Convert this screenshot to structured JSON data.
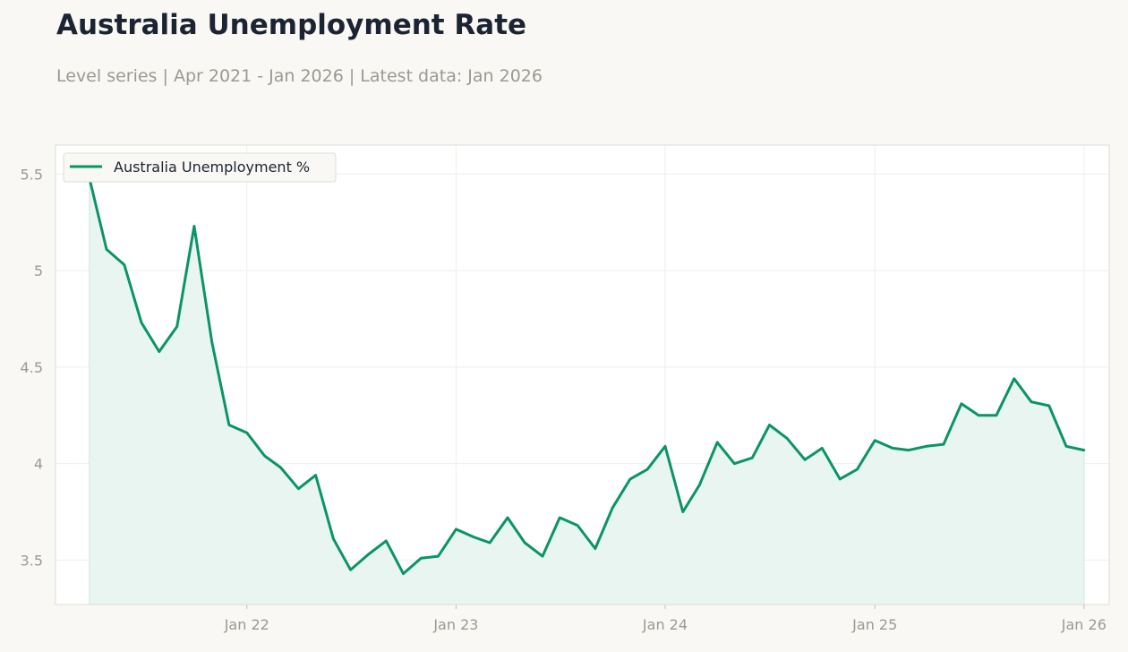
{
  "header": {
    "title": "Australia Unemployment Rate",
    "subtitle": "Level series | Apr 2021 - Jan 2026 | Latest data: Jan 2026"
  },
  "colors": {
    "line": "#0a9468",
    "fill": "#e9f5f0",
    "grid": "#eeeeec",
    "frame": "#dcdcd6",
    "plot_background": "#ffffff",
    "page_background": "#f9f8f4"
  },
  "chart_data": {
    "type": "area",
    "title": "Australia Unemployment Rate",
    "subtitle": "Level series | Apr 2021 - Jan 2026 | Latest data: Jan 2026",
    "xlabel": "",
    "ylabel": "",
    "grid": true,
    "legend_position": "top-left",
    "x_range": [
      "2021-02-01",
      "2026-02-14"
    ],
    "ylim": [
      3.27,
      5.65
    ],
    "y_ticks": [
      3.5,
      4,
      4.5,
      5,
      5.5
    ],
    "y_tick_labels": [
      "3.5",
      "4",
      "4.5",
      "5",
      "5.5"
    ],
    "x_ticks": [
      "2022-01-01",
      "2023-01-01",
      "2024-01-01",
      "2025-01-01",
      "2026-01-01"
    ],
    "x_tick_labels": [
      "Jan 22",
      "Jan 23",
      "Jan 24",
      "Jan 25",
      "Jan 26"
    ],
    "series": [
      {
        "name": "Australia Unemployment %",
        "x": [
          "2021-04",
          "2021-05",
          "2021-06",
          "2021-07",
          "2021-08",
          "2021-09",
          "2021-10",
          "2021-11",
          "2021-12",
          "2022-01",
          "2022-02",
          "2022-03",
          "2022-04",
          "2022-05",
          "2022-06",
          "2022-07",
          "2022-08",
          "2022-09",
          "2022-10",
          "2022-11",
          "2022-12",
          "2023-01",
          "2023-02",
          "2023-03",
          "2023-04",
          "2023-05",
          "2023-06",
          "2023-07",
          "2023-08",
          "2023-09",
          "2023-10",
          "2023-11",
          "2023-12",
          "2024-01",
          "2024-02",
          "2024-03",
          "2024-04",
          "2024-05",
          "2024-06",
          "2024-07",
          "2024-08",
          "2024-09",
          "2024-10",
          "2024-11",
          "2024-12",
          "2025-01",
          "2025-02",
          "2025-03",
          "2025-04",
          "2025-05",
          "2025-06",
          "2025-07",
          "2025-08",
          "2025-09",
          "2025-10",
          "2025-11",
          "2025-12",
          "2026-01"
        ],
        "values": [
          5.48,
          5.11,
          5.03,
          4.73,
          4.58,
          4.71,
          5.23,
          4.63,
          4.2,
          4.16,
          4.04,
          3.98,
          3.87,
          3.94,
          3.61,
          3.45,
          3.53,
          3.6,
          3.43,
          3.51,
          3.52,
          3.66,
          3.62,
          3.59,
          3.72,
          3.59,
          3.52,
          3.72,
          3.68,
          3.56,
          3.77,
          3.92,
          3.97,
          4.09,
          3.75,
          3.89,
          4.11,
          4.0,
          4.03,
          4.2,
          4.13,
          4.02,
          4.08,
          3.92,
          3.97,
          4.12,
          4.08,
          4.07,
          4.09,
          4.1,
          4.31,
          4.25,
          4.25,
          4.44,
          4.32,
          4.3,
          4.09,
          4.07
        ]
      }
    ]
  }
}
